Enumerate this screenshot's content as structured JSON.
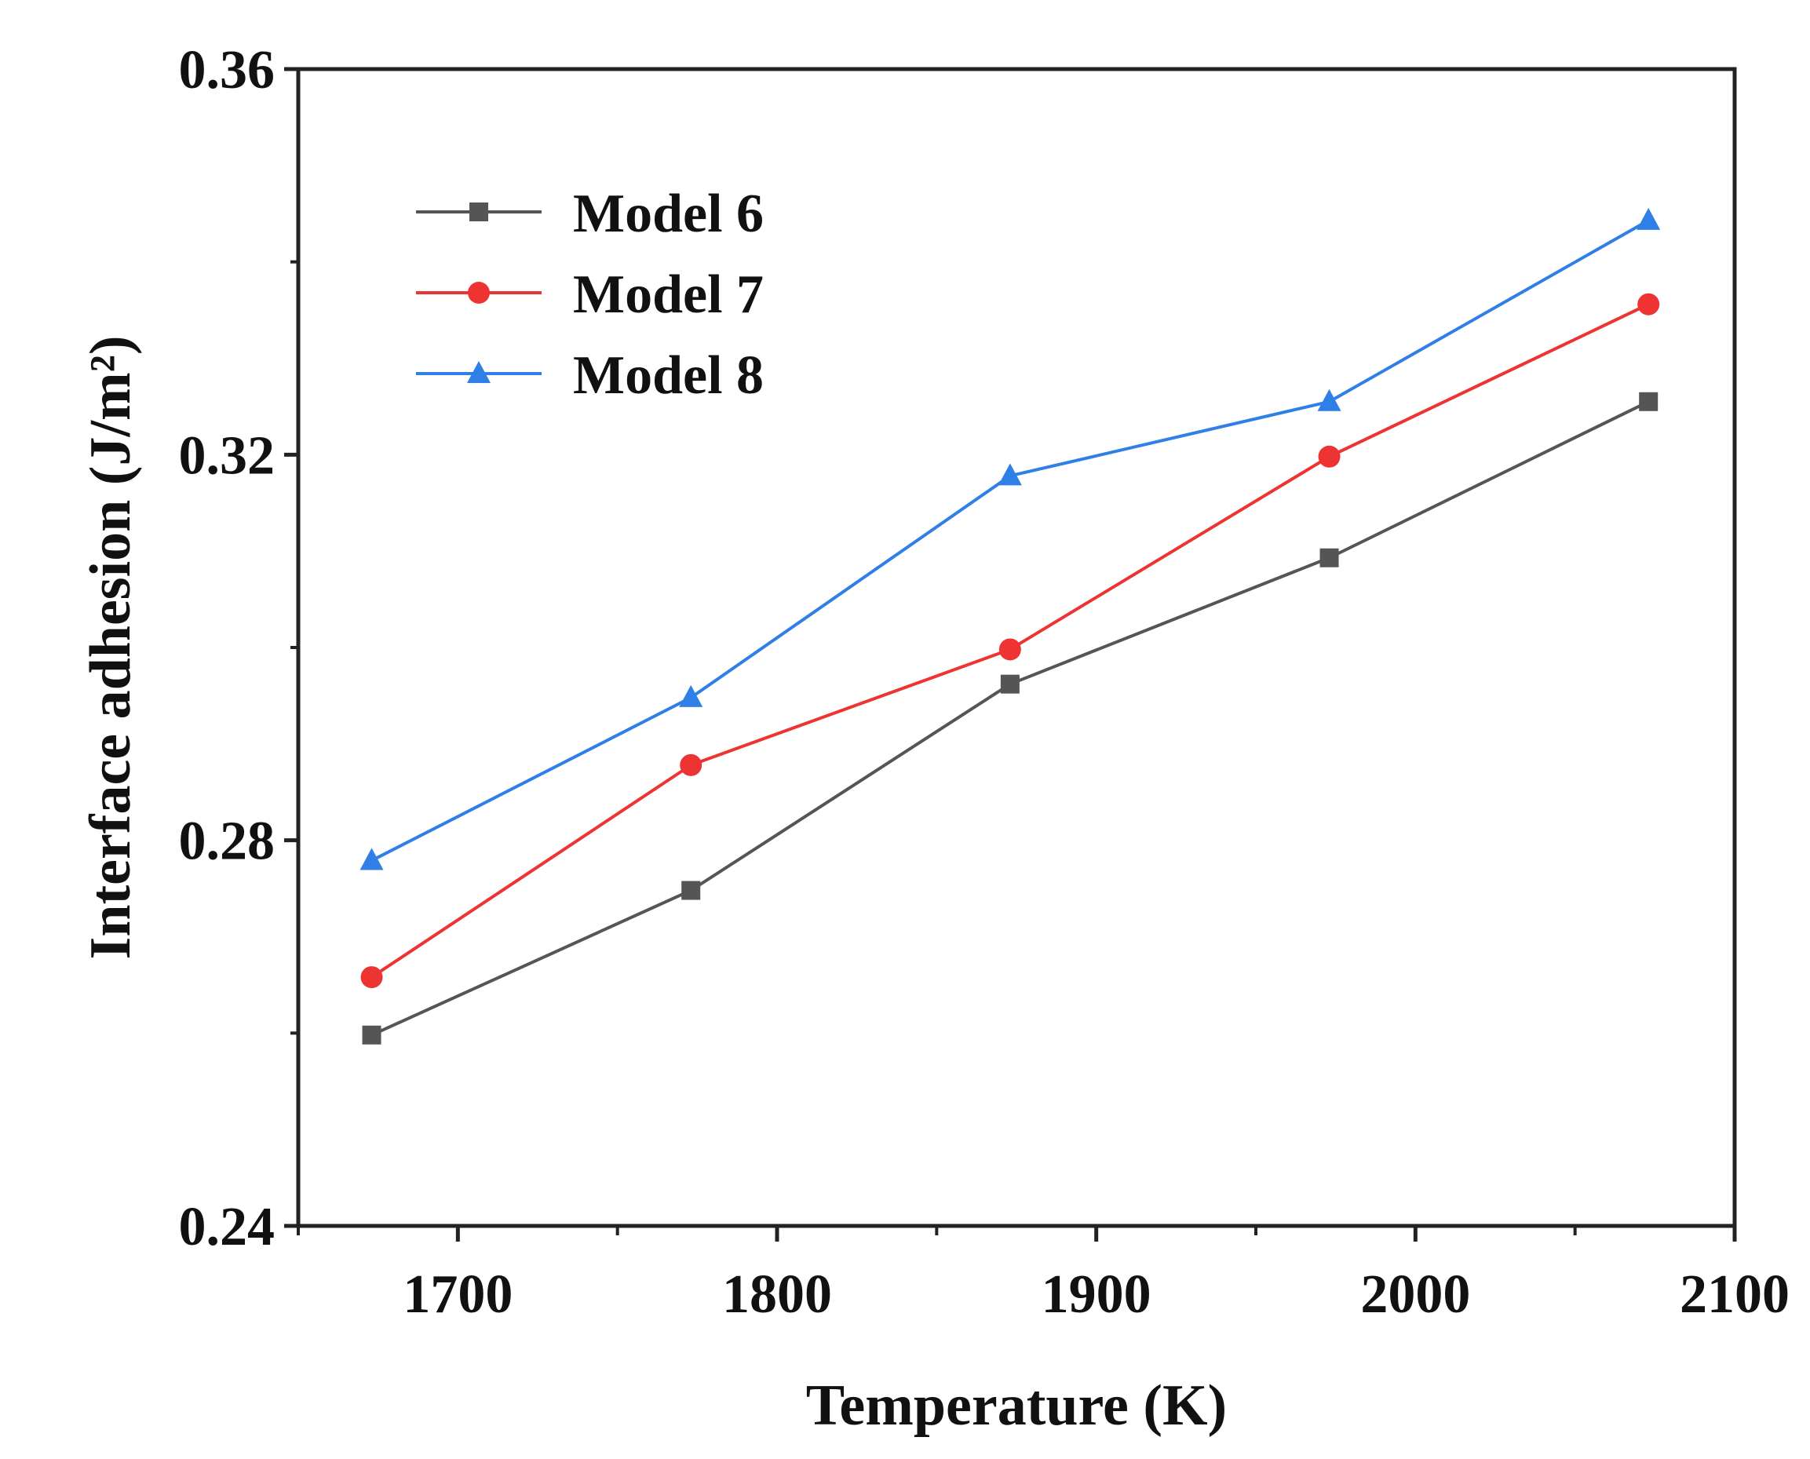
{
  "chart_data": {
    "type": "line",
    "title": "",
    "xlabel": "Temperature (K)",
    "ylabel": "Interface adhesion (J/m²)",
    "xlim": [
      1650,
      2100
    ],
    "ylim": [
      0.24,
      0.36
    ],
    "xticks": [
      1700,
      1800,
      1900,
      2000,
      2100
    ],
    "xtick_labels": [
      "1700",
      "1800",
      "1900",
      "2000",
      "2100"
    ],
    "yticks": [
      0.24,
      0.28,
      0.32,
      0.36
    ],
    "ytick_labels": [
      "0.24",
      "0.28",
      "0.32",
      "0.36"
    ],
    "grid": false,
    "legend_position": "top-left",
    "x": [
      1673,
      1773,
      1873,
      1973,
      2073
    ],
    "series": [
      {
        "name": "Model 6",
        "color": "#555555",
        "marker": "square",
        "values": [
          0.2598,
          0.2748,
          0.2962,
          0.3093,
          0.3255
        ]
      },
      {
        "name": "Model 7",
        "color": "#ee3333",
        "marker": "circle",
        "values": [
          0.2658,
          0.2878,
          0.2998,
          0.3198,
          0.3356
        ]
      },
      {
        "name": "Model 8",
        "color": "#2f7fe6",
        "marker": "triangle",
        "values": [
          0.2779,
          0.2948,
          0.3178,
          0.3255,
          0.3443
        ]
      }
    ]
  }
}
